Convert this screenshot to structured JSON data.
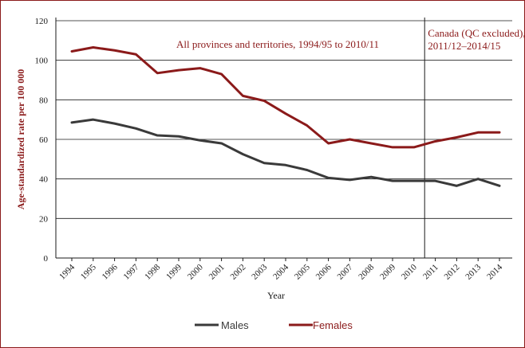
{
  "chart_data": {
    "type": "line",
    "title": "",
    "xlabel": "Year",
    "ylabel": "Age-standardized rate per 100 000",
    "ylim": [
      0,
      120
    ],
    "yticks": [
      0,
      20,
      40,
      60,
      80,
      100,
      120
    ],
    "categories": [
      "1994",
      "1995",
      "1996",
      "1997",
      "1998",
      "1999",
      "2000",
      "2001",
      "2002",
      "2003",
      "2004",
      "2005",
      "2006",
      "2007",
      "2008",
      "2009",
      "2010",
      "2011",
      "2012",
      "2013",
      "2014"
    ],
    "series": [
      {
        "name": "Males",
        "color": "#3a3a3a",
        "values": [
          68.5,
          70,
          68,
          65.5,
          62,
          61.5,
          59.5,
          58,
          52.5,
          48,
          47,
          44.5,
          40.5,
          39.5,
          41,
          39,
          39,
          39,
          36.5,
          40,
          36.5
        ]
      },
      {
        "name": "Females",
        "color": "#8b1a1a",
        "values": [
          104.5,
          106.5,
          105,
          103,
          93.5,
          95,
          96,
          93,
          82,
          79.5,
          73,
          67,
          58,
          60,
          58,
          56,
          56,
          59,
          61,
          63.5,
          63.5
        ]
      }
    ],
    "divider_after_category": "2010",
    "annotations": {
      "left": "All provinces and territories, 1994/95 to 2010/11",
      "right_line1": "Canada (QC excluded),",
      "right_line2": "2011/12–2014/15"
    },
    "legend": {
      "placement": "bottom-center",
      "entries": [
        "Males",
        "Females"
      ]
    },
    "grid": true
  }
}
